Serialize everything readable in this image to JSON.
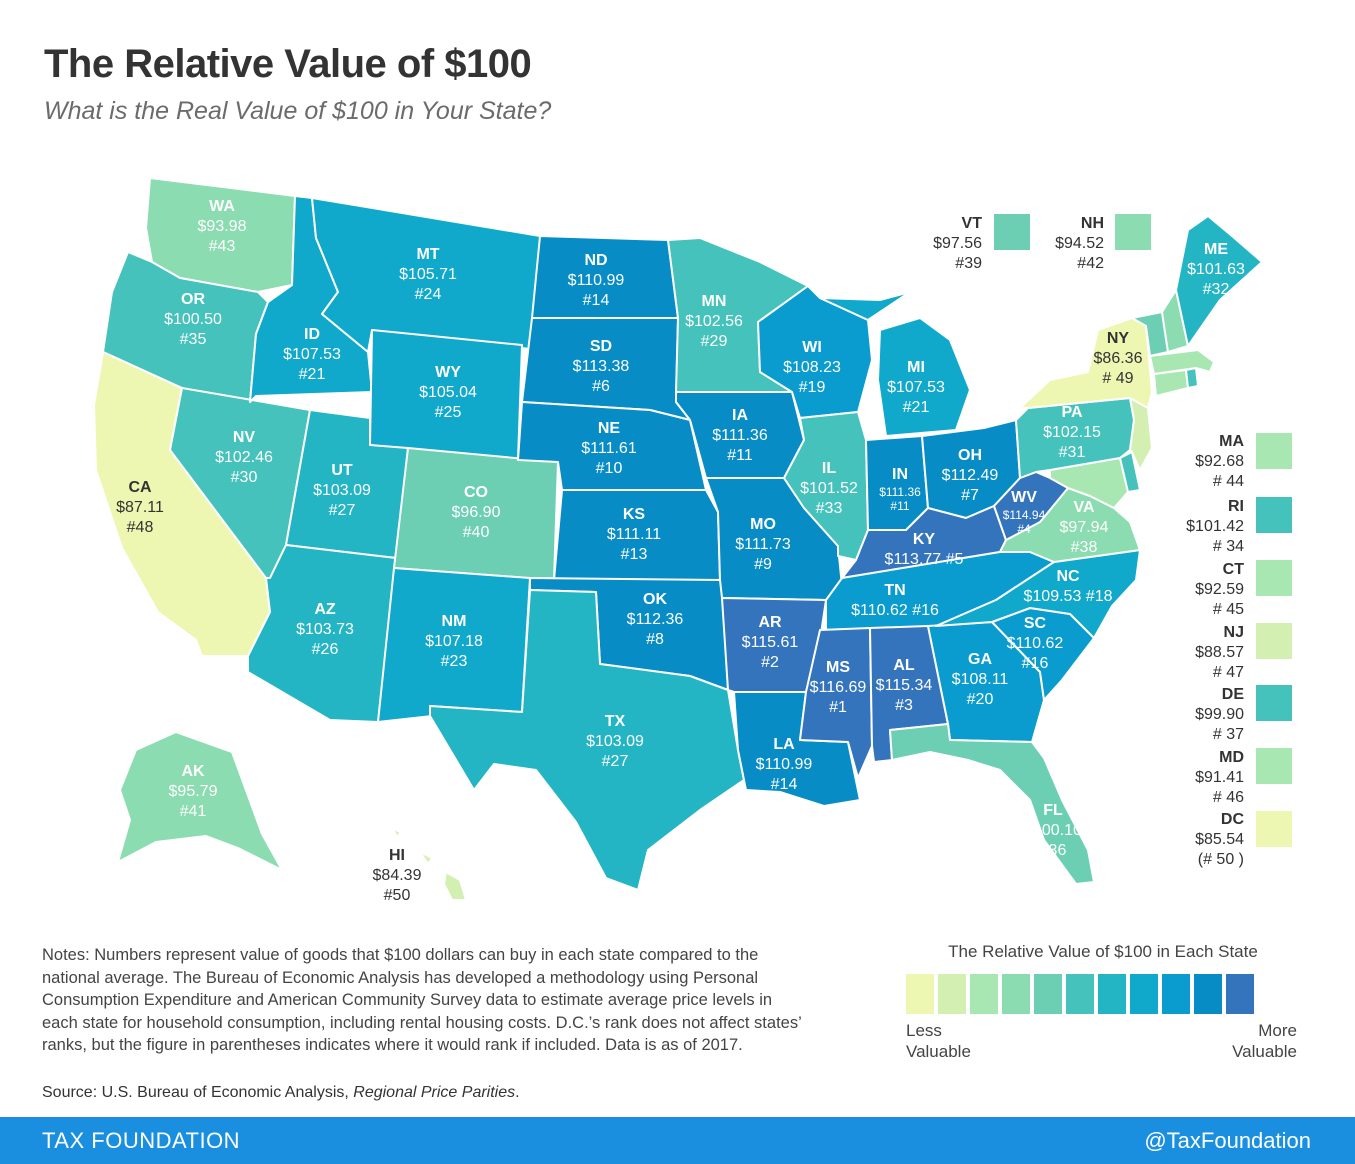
{
  "header": {
    "title": "The Relative Value of $100",
    "subtitle": "What is the Real Value of $100 in Your State?"
  },
  "colors": {
    "c1": "#eef7b1",
    "c2": "#d3f0b2",
    "c3": "#a8e6b2",
    "c4": "#8bdcb0",
    "c5": "#6ccfb4",
    "c6": "#45c2bb",
    "c7": "#24b5c4",
    "c8": "#10a8cb",
    "c9": "#0a9cce",
    "c10": "#078cc5",
    "c11": "#3474bd"
  },
  "states": {
    "WA": {
      "abbr": "WA",
      "value": "$93.98",
      "rank": "#43"
    },
    "OR": {
      "abbr": "OR",
      "value": "$100.50",
      "rank": "#35"
    },
    "CA": {
      "abbr": "CA",
      "value": "$87.11",
      "rank": "#48"
    },
    "NV": {
      "abbr": "NV",
      "value": "$102.46",
      "rank": "#30"
    },
    "ID": {
      "abbr": "ID",
      "value": "$107.53",
      "rank": "#21"
    },
    "MT": {
      "abbr": "MT",
      "value": "$105.71",
      "rank": "#24"
    },
    "WY": {
      "abbr": "WY",
      "value": "$105.04",
      "rank": "#25"
    },
    "UT": {
      "abbr": "UT",
      "value": "$103.09",
      "rank": "#27"
    },
    "AZ": {
      "abbr": "AZ",
      "value": "$103.73",
      "rank": "#26"
    },
    "CO": {
      "abbr": "CO",
      "value": "$96.90",
      "rank": "#40"
    },
    "NM": {
      "abbr": "NM",
      "value": "$107.18",
      "rank": "#23"
    },
    "ND": {
      "abbr": "ND",
      "value": "$110.99",
      "rank": "#14"
    },
    "SD": {
      "abbr": "SD",
      "value": "$113.38",
      "rank": "#6"
    },
    "NE": {
      "abbr": "NE",
      "value": "$111.61",
      "rank": "#10"
    },
    "KS": {
      "abbr": "KS",
      "value": "$111.11",
      "rank": "#13"
    },
    "OK": {
      "abbr": "OK",
      "value": "$112.36",
      "rank": "#8"
    },
    "TX": {
      "abbr": "TX",
      "value": "$103.09",
      "rank": "#27"
    },
    "MN": {
      "abbr": "MN",
      "value": "$102.56",
      "rank": "#29"
    },
    "IA": {
      "abbr": "IA",
      "value": "$111.36",
      "rank": "#11"
    },
    "MO": {
      "abbr": "MO",
      "value": "$111.73",
      "rank": "#9"
    },
    "AR": {
      "abbr": "AR",
      "value": "$115.61",
      "rank": "#2"
    },
    "LA": {
      "abbr": "LA",
      "value": "$110.99",
      "rank": "#14"
    },
    "WI": {
      "abbr": "WI",
      "value": "$108.23",
      "rank": "#19"
    },
    "IL": {
      "abbr": "IL",
      "value": "$101.52",
      "rank": "#33"
    },
    "MI": {
      "abbr": "MI",
      "value": "$107.53",
      "rank": "#21"
    },
    "IN": {
      "abbr": "IN",
      "value": "$111.36",
      "rank": "#11"
    },
    "OH": {
      "abbr": "OH",
      "value": "$112.49",
      "rank": "#7"
    },
    "KY": {
      "abbr": "KY",
      "value": "$113.77",
      "rank": "#5"
    },
    "TN": {
      "abbr": "TN",
      "value": "$110.62",
      "rank": "#16"
    },
    "MS": {
      "abbr": "MS",
      "value": "$116.69",
      "rank": "#1"
    },
    "AL": {
      "abbr": "AL",
      "value": "$115.34",
      "rank": "#3"
    },
    "GA": {
      "abbr": "GA",
      "value": "$108.11",
      "rank": "#20"
    },
    "FL": {
      "abbr": "FL",
      "value": "$100.10",
      "rank": "#36"
    },
    "SC": {
      "abbr": "SC",
      "value": "$110.62",
      "rank": "#16"
    },
    "NC": {
      "abbr": "NC",
      "value": "$109.53",
      "rank": "#18"
    },
    "VA": {
      "abbr": "VA",
      "value": "$97.94",
      "rank": "#38"
    },
    "WV": {
      "abbr": "WV",
      "value": "$114.94",
      "rank": "#4"
    },
    "PA": {
      "abbr": "PA",
      "value": "$102.15",
      "rank": "#31"
    },
    "NY": {
      "abbr": "NY",
      "value": "$86.36",
      "rank": "# 49"
    },
    "ME": {
      "abbr": "ME",
      "value": "$101.63",
      "rank": "#32"
    },
    "AK": {
      "abbr": "AK",
      "value": "$95.79",
      "rank": "#41"
    },
    "HI": {
      "abbr": "HI",
      "value": "$84.39",
      "rank": "#50"
    }
  },
  "side_states": {
    "VT": {
      "abbr": "VT",
      "value": "$97.56",
      "rank": "#39"
    },
    "NH": {
      "abbr": "NH",
      "value": "$94.52",
      "rank": "#42"
    },
    "MA": {
      "abbr": "MA",
      "value": "$92.68",
      "rank": "# 44"
    },
    "RI": {
      "abbr": "RI",
      "value": "$101.42",
      "rank": "# 34"
    },
    "CT": {
      "abbr": "CT",
      "value": "$92.59",
      "rank": "# 45"
    },
    "NJ": {
      "abbr": "NJ",
      "value": "$88.57",
      "rank": "# 47"
    },
    "DE": {
      "abbr": "DE",
      "value": "$99.90",
      "rank": "# 37"
    },
    "MD": {
      "abbr": "MD",
      "value": "$91.41",
      "rank": "# 46"
    },
    "DC": {
      "abbr": "DC",
      "value": "$85.54",
      "rank": "(# 50 )"
    }
  },
  "legend": {
    "title": "The Relative Value of $100 in Each State",
    "less_1": "Less",
    "less_2": "Valuable",
    "more_1": "More",
    "more_2": "Valuable"
  },
  "notes": {
    "text": "Notes: Numbers represent value of goods that $100 dollars can buy in each state compared to the national average. The Bureau of Economic Analysis has developed a methodology using Personal Consumption Expenditure and American Community Survey data to estimate average price levels in each state for household consumption, including rental housing costs. D.C.’s rank does not affect states’ ranks, but the figure in parentheses indicates where it would rank if included. Data is as of 2017.",
    "source_prefix": "Source: U.S. Bureau of Economic Analysis, ",
    "source_title": "Regional Price Parities",
    "source_suffix": "."
  },
  "footer": {
    "brand": "TAX FOUNDATION",
    "handle": "@TaxFoundation"
  }
}
